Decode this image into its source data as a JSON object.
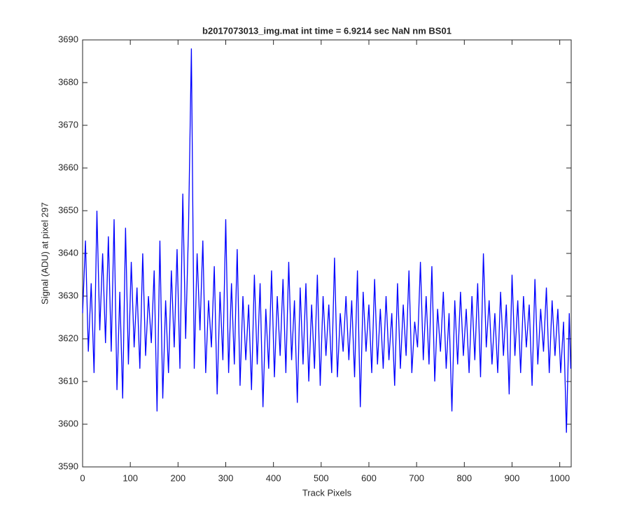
{
  "chart_data": {
    "type": "line",
    "title": "b2017073013_img.mat int time = 6.9214 sec  NaN nm BS01",
    "xlabel": "Track Pixels",
    "ylabel": "Signal (ADU) at pixel 297",
    "xlim": [
      0,
      1024
    ],
    "xticks": [
      0,
      100,
      200,
      300,
      400,
      500,
      600,
      700,
      800,
      900,
      1000
    ],
    "ylim": [
      3590,
      3690
    ],
    "yticks": [
      3590,
      3600,
      3610,
      3620,
      3630,
      3640,
      3650,
      3660,
      3670,
      3680,
      3690
    ],
    "grid": false,
    "x": [
      0,
      6,
      12,
      18,
      24,
      30,
      36,
      42,
      48,
      54,
      60,
      66,
      72,
      78,
      84,
      90,
      96,
      102,
      108,
      114,
      120,
      126,
      132,
      138,
      144,
      150,
      156,
      162,
      168,
      174,
      180,
      186,
      192,
      198,
      204,
      210,
      216,
      222,
      228,
      234,
      240,
      246,
      252,
      258,
      264,
      270,
      276,
      282,
      288,
      294,
      300,
      306,
      312,
      318,
      324,
      330,
      336,
      342,
      348,
      354,
      360,
      366,
      372,
      378,
      384,
      390,
      396,
      402,
      408,
      414,
      420,
      426,
      432,
      438,
      444,
      450,
      456,
      462,
      468,
      474,
      480,
      486,
      492,
      498,
      504,
      510,
      516,
      522,
      528,
      534,
      540,
      546,
      552,
      558,
      564,
      570,
      576,
      582,
      588,
      594,
      600,
      606,
      612,
      618,
      624,
      630,
      636,
      642,
      648,
      654,
      660,
      666,
      672,
      678,
      684,
      690,
      696,
      702,
      708,
      714,
      720,
      726,
      732,
      738,
      744,
      750,
      756,
      762,
      768,
      774,
      780,
      786,
      792,
      798,
      804,
      810,
      816,
      822,
      828,
      834,
      840,
      846,
      852,
      858,
      864,
      870,
      876,
      882,
      888,
      894,
      900,
      906,
      912,
      918,
      924,
      930,
      936,
      942,
      948,
      954,
      960,
      966,
      972,
      978,
      984,
      990,
      996,
      1002,
      1008,
      1014,
      1020,
      1023
    ],
    "series": [
      {
        "name": "signal",
        "color": "#0000ff",
        "values": [
          3626,
          3643,
          3617,
          3633,
          3612,
          3650,
          3622,
          3640,
          3619,
          3644,
          3617,
          3648,
          3608,
          3631,
          3606,
          3646,
          3614,
          3638,
          3618,
          3632,
          3613,
          3640,
          3616,
          3630,
          3619,
          3636,
          3603,
          3643,
          3606,
          3629,
          3612,
          3636,
          3618,
          3641,
          3613,
          3654,
          3620,
          3646,
          3688,
          3613,
          3640,
          3622,
          3643,
          3612,
          3629,
          3618,
          3637,
          3607,
          3631,
          3615,
          3648,
          3612,
          3633,
          3614,
          3641,
          3609,
          3630,
          3615,
          3628,
          3608,
          3635,
          3614,
          3633,
          3604,
          3627,
          3613,
          3636,
          3611,
          3630,
          3616,
          3634,
          3612,
          3638,
          3615,
          3629,
          3605,
          3632,
          3614,
          3633,
          3610,
          3628,
          3613,
          3635,
          3609,
          3630,
          3616,
          3628,
          3612,
          3639,
          3611,
          3626,
          3617,
          3630,
          3615,
          3629,
          3611,
          3636,
          3604,
          3631,
          3617,
          3628,
          3612,
          3634,
          3614,
          3627,
          3613,
          3630,
          3615,
          3626,
          3609,
          3633,
          3613,
          3628,
          3616,
          3636,
          3612,
          3624,
          3618,
          3638,
          3615,
          3630,
          3614,
          3637,
          3610,
          3627,
          3617,
          3631,
          3613,
          3626,
          3603,
          3629,
          3614,
          3631,
          3616,
          3627,
          3612,
          3630,
          3615,
          3633,
          3611,
          3640,
          3618,
          3629,
          3614,
          3626,
          3612,
          3631,
          3616,
          3628,
          3607,
          3635,
          3616,
          3629,
          3612,
          3630,
          3618,
          3628,
          3609,
          3634,
          3614,
          3627,
          3617,
          3632,
          3612,
          3629,
          3616,
          3627,
          3612,
          3624,
          3598,
          3626,
          3613
        ]
      }
    ]
  }
}
